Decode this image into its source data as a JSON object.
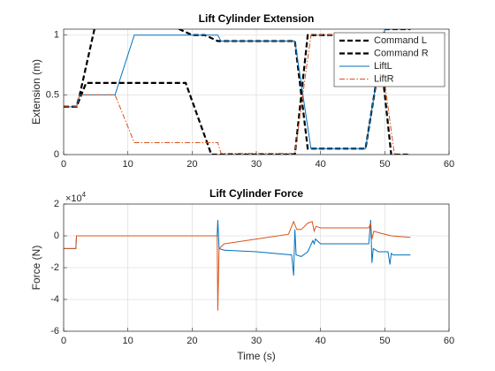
{
  "chart_data": [
    {
      "type": "line",
      "title": "Lift Cylinder Extension",
      "y_label": "Extension (m)",
      "xlim": [
        0,
        60
      ],
      "xticks": [
        0,
        10,
        20,
        30,
        40,
        50,
        60
      ],
      "ylim": [
        0,
        1.05
      ],
      "yticks": [
        0,
        0.5,
        1
      ],
      "grid": true,
      "legend": "northeast",
      "series": [
        {
          "name": "Command L",
          "color": "#000000",
          "style": "dashed",
          "width": 2.2,
          "x": [
            0,
            2,
            2.5,
            5,
            16,
            20,
            22,
            24,
            36,
            38,
            47,
            50,
            54
          ],
          "values": [
            0.4,
            0.4,
            0.5,
            1.1,
            1.1,
            1.0,
            1.0,
            0.95,
            0.95,
            0.05,
            0.05,
            1.05,
            1.05
          ]
        },
        {
          "name": "Command R",
          "color": "#000000",
          "style": "dashed",
          "width": 2.2,
          "x": [
            0,
            2,
            3.5,
            19,
            23,
            36,
            38,
            49,
            51,
            54
          ],
          "values": [
            0.4,
            0.4,
            0.6,
            0.6,
            0,
            0,
            1.0,
            1.0,
            0,
            0
          ]
        },
        {
          "name": "LiftL",
          "color": "#0072bd",
          "style": "solid",
          "width": 1,
          "x": [
            0,
            2,
            2.5,
            8,
            11,
            24,
            24.5,
            36,
            38.5,
            47,
            50,
            54
          ],
          "values": [
            0.4,
            0.4,
            0.5,
            0.5,
            1.0,
            1.0,
            0.95,
            0.95,
            0.05,
            0.05,
            1.05,
            1.05
          ]
        },
        {
          "name": "LiftR",
          "color": "#d95319",
          "style": "dashdot",
          "width": 1,
          "x": [
            0,
            2,
            2.5,
            8,
            11,
            24,
            24.5,
            36,
            38.5,
            49,
            51.5,
            54
          ],
          "values": [
            0.4,
            0.4,
            0.5,
            0.5,
            0.1,
            0.1,
            0.01,
            0.01,
            1.0,
            1.0,
            0,
            0
          ]
        }
      ]
    },
    {
      "type": "line",
      "title": "Lift Cylinder Force",
      "y_label": "Force (N)",
      "x_label": "Time (s)",
      "y_exponent": {
        "base": "×10",
        "power": "4"
      },
      "xlim": [
        0,
        60
      ],
      "xticks": [
        0,
        10,
        20,
        30,
        40,
        50,
        60
      ],
      "ylim": [
        -60000,
        20000
      ],
      "yticks": [
        {
          "value": -60000,
          "label": "-6"
        },
        {
          "value": -40000,
          "label": "-4"
        },
        {
          "value": -20000,
          "label": "-2"
        },
        {
          "value": 0,
          "label": "0"
        },
        {
          "value": 20000,
          "label": "2"
        }
      ],
      "grid": true,
      "series": [
        {
          "name": "LiftL",
          "color": "#0072bd",
          "style": "solid",
          "width": 1,
          "x": [
            0,
            1.9,
            2,
            23.9,
            24,
            24.2,
            25,
            30,
            35.5,
            35.8,
            36,
            36.2,
            37,
            38,
            38.8,
            39,
            39.2,
            40,
            47.5,
            47.8,
            48,
            48.2,
            49,
            50.5,
            50.8,
            51,
            51.3,
            52,
            54
          ],
          "values": [
            -8000,
            -8000,
            0,
            0,
            10000,
            -8000,
            -9000,
            -10000,
            -12000,
            -25000,
            4000,
            -12000,
            -13000,
            -10000,
            -3000,
            -5000,
            -2000,
            -5000,
            -5000,
            10000,
            -17000,
            -8000,
            -10000,
            -10000,
            -18000,
            -11000,
            -12000,
            -12000,
            -12000
          ]
        },
        {
          "name": "LiftR",
          "color": "#d95319",
          "style": "solid",
          "width": 1,
          "x": [
            0,
            1.9,
            2,
            23.9,
            24,
            24.2,
            25,
            30,
            35,
            35.8,
            36,
            36.3,
            37,
            38,
            38.7,
            39,
            39.3,
            40,
            47.5,
            47.8,
            48,
            48.3,
            49,
            51,
            54
          ],
          "values": [
            -8000,
            -8000,
            0,
            0,
            -47000,
            -8000,
            -5000,
            -2000,
            1000,
            9000,
            7000,
            4000,
            4000,
            8000,
            9000,
            3000,
            6000,
            5000,
            5000,
            8000,
            -2000,
            3000,
            2000,
            0,
            -1000
          ]
        }
      ]
    }
  ]
}
